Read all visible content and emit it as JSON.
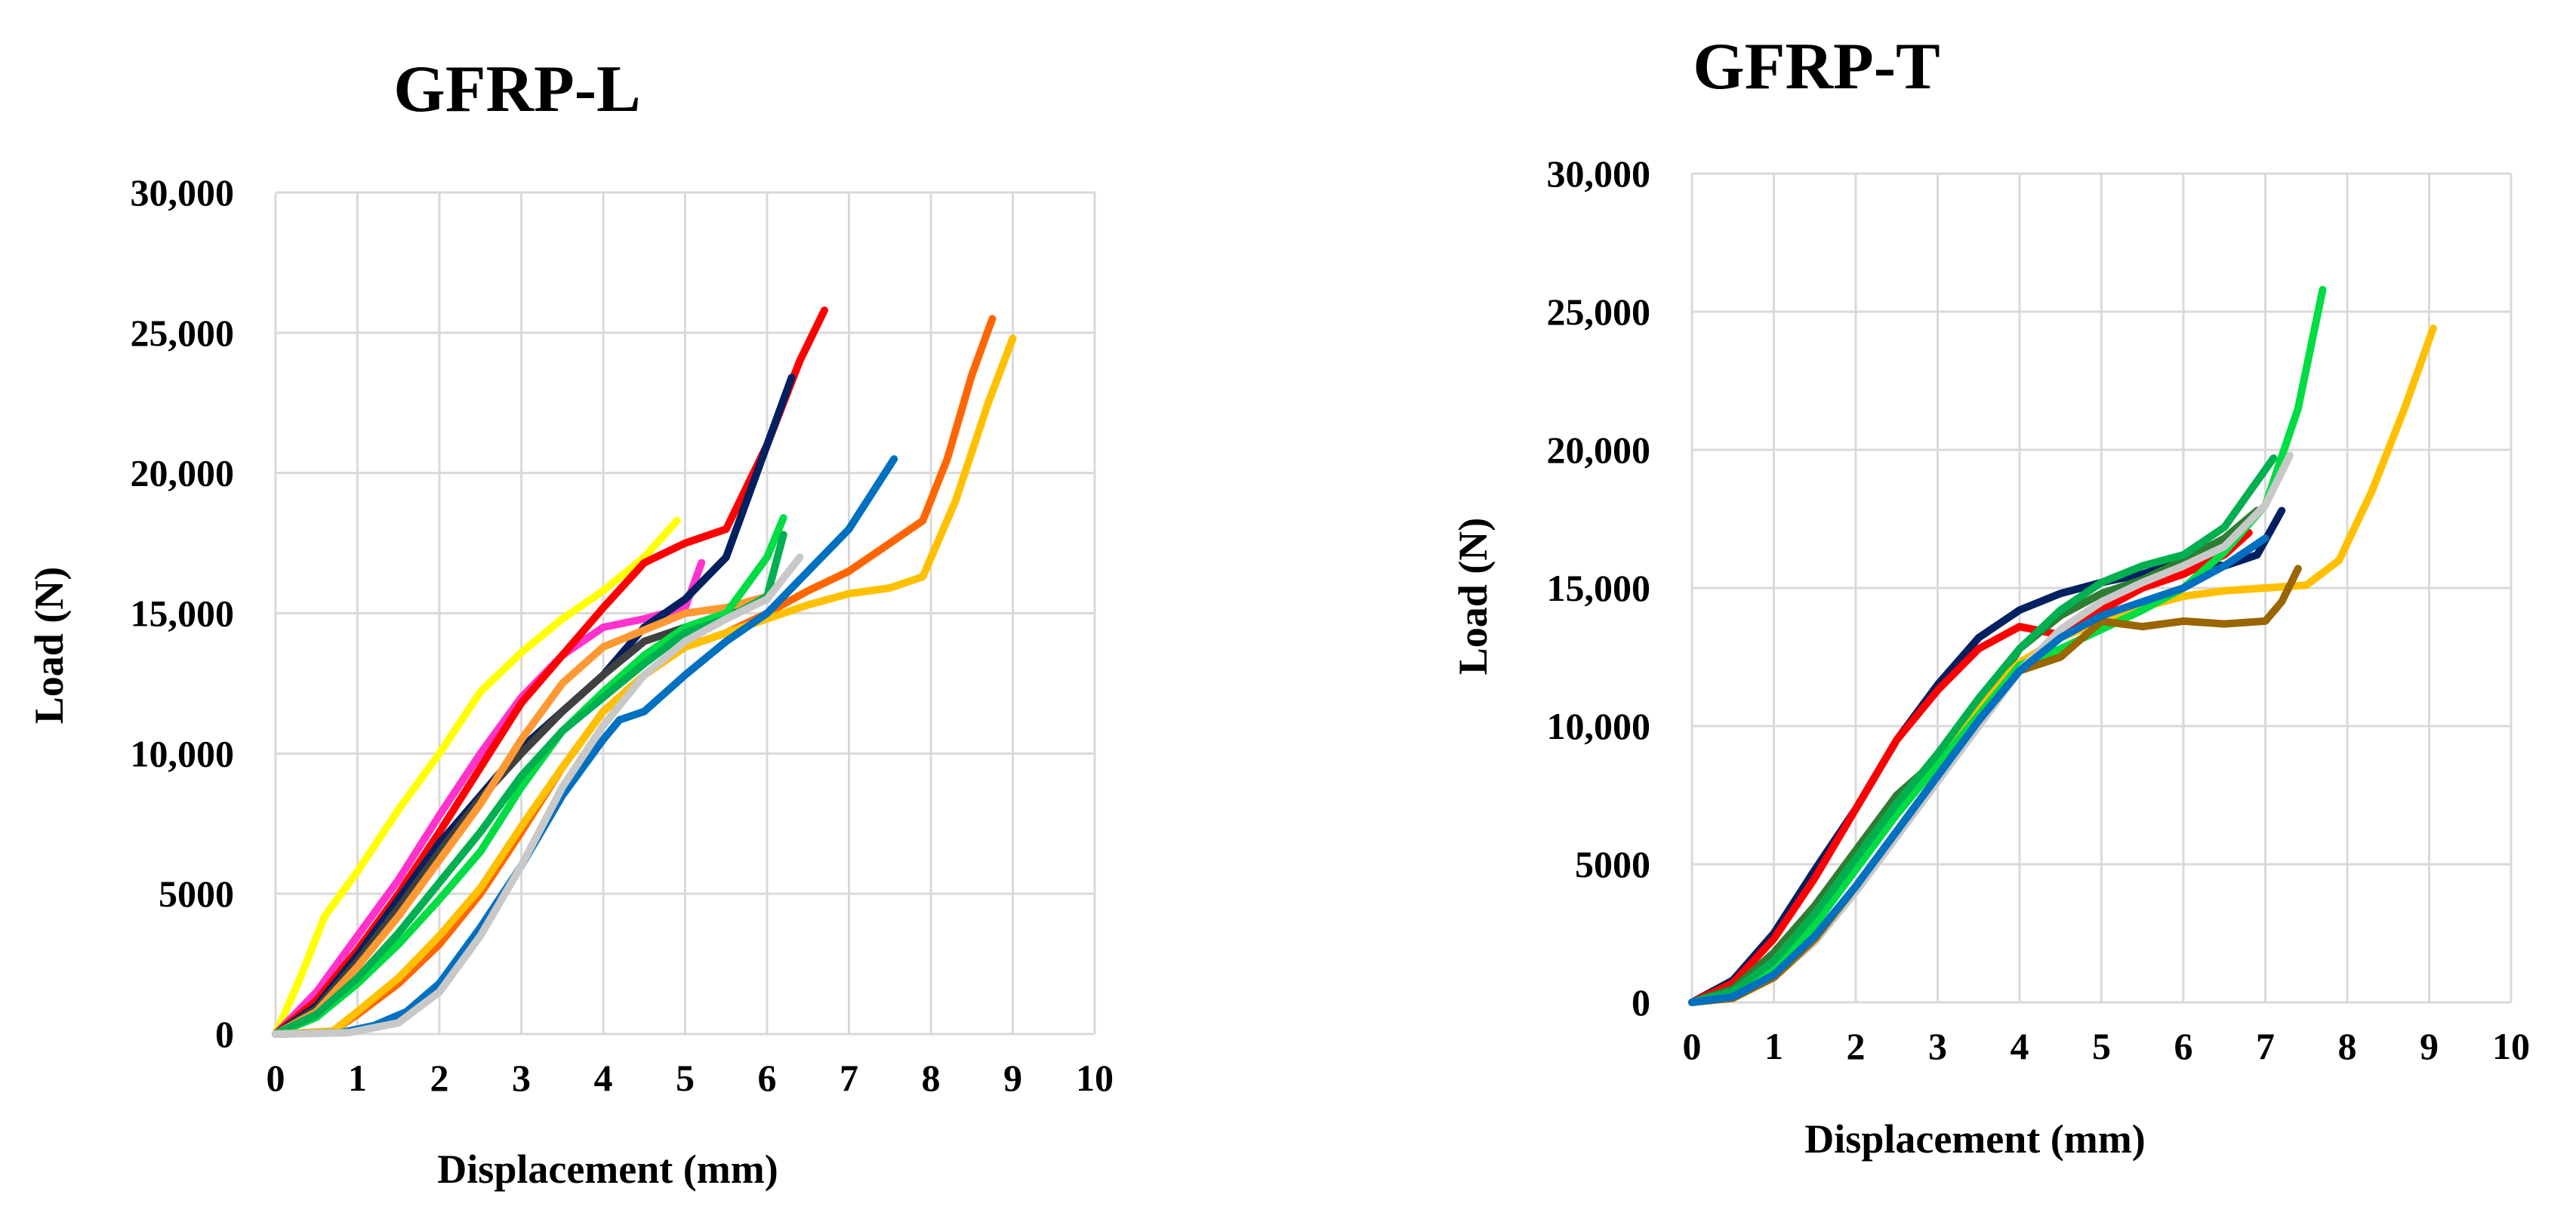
{
  "chart_data": [
    {
      "type": "line",
      "title": "GFRP-L",
      "xlabel": "Displacement (mm)",
      "ylabel": "Load (N)",
      "xlim": [
        0,
        10
      ],
      "ylim": [
        0,
        30000
      ],
      "xticks": [
        0,
        1,
        2,
        3,
        4,
        5,
        6,
        7,
        8,
        9,
        10
      ],
      "xtick_labels": [
        "0",
        "1",
        "2",
        "3",
        "4",
        "5",
        "6",
        "7",
        "8",
        "9",
        "10"
      ],
      "yticks": [
        0,
        5000,
        10000,
        15000,
        20000,
        25000,
        30000
      ],
      "ytick_labels": [
        "0",
        "5000",
        "10,000",
        "15,000",
        "20,000",
        "25,000",
        "30,000"
      ],
      "grid": true,
      "series": [
        {
          "name": "yellow",
          "color": "#ffff00",
          "x": [
            0,
            0.3,
            0.6,
            1.0,
            1.5,
            2.0,
            2.5,
            3.0,
            3.5,
            4.0,
            4.5,
            4.9
          ],
          "y": [
            0,
            2000,
            4200,
            5800,
            8000,
            10000,
            12200,
            13600,
            14800,
            15800,
            17000,
            18300
          ]
        },
        {
          "name": "magenta",
          "color": "#ff33cc",
          "x": [
            0,
            0.5,
            1.0,
            1.5,
            2.0,
            2.5,
            3.0,
            3.5,
            4.0,
            4.5,
            5.0,
            5.2
          ],
          "y": [
            0,
            1500,
            3500,
            5500,
            7800,
            10000,
            12000,
            13500,
            14500,
            14800,
            15200,
            16800
          ]
        },
        {
          "name": "red",
          "color": "#ff0000",
          "x": [
            0,
            0.5,
            1.0,
            1.5,
            2.0,
            2.5,
            3.0,
            3.5,
            4.0,
            4.5,
            5.0,
            5.5,
            6.0,
            6.4,
            6.7
          ],
          "y": [
            0,
            1200,
            3000,
            5000,
            7200,
            9500,
            11800,
            13500,
            15200,
            16800,
            17500,
            18000,
            21000,
            24000,
            25800
          ]
        },
        {
          "name": "navy",
          "color": "#002060",
          "x": [
            0,
            0.5,
            1.0,
            1.5,
            2.0,
            2.5,
            3.0,
            3.5,
            4.0,
            4.5,
            5.0,
            5.5,
            6.0,
            6.3
          ],
          "y": [
            0,
            1000,
            2800,
            4800,
            6800,
            8500,
            10200,
            11500,
            12800,
            14500,
            15500,
            17000,
            21000,
            23400
          ]
        },
        {
          "name": "dark-gray",
          "color": "#404040",
          "x": [
            0,
            0.5,
            1.0,
            1.5,
            2.0,
            2.5,
            3.0,
            3.5,
            4.0,
            4.5,
            5.0,
            5.5,
            6.0
          ],
          "y": [
            0,
            900,
            2600,
            4500,
            6500,
            8400,
            10000,
            11500,
            12800,
            14000,
            14500,
            15000,
            15500
          ]
        },
        {
          "name": "light-orange",
          "color": "#ff9933",
          "x": [
            0,
            0.5,
            1.0,
            1.5,
            2.0,
            2.5,
            3.0,
            3.5,
            4.0,
            4.5,
            5.0,
            5.5,
            6.0
          ],
          "y": [
            0,
            800,
            2400,
            4200,
            6200,
            8200,
            10500,
            12500,
            13800,
            14400,
            15000,
            15200,
            15600
          ]
        },
        {
          "name": "green",
          "color": "#00dd44",
          "x": [
            0,
            0.5,
            1.0,
            1.5,
            2.0,
            2.5,
            3.0,
            3.5,
            4.0,
            4.5,
            5.0,
            5.5,
            6.0,
            6.2
          ],
          "y": [
            0,
            600,
            1800,
            3200,
            4800,
            6500,
            8800,
            10800,
            12200,
            13500,
            14500,
            15000,
            17000,
            18400
          ]
        },
        {
          "name": "teal",
          "color": "#00b050",
          "x": [
            0,
            0.5,
            1.0,
            1.5,
            2.0,
            2.5,
            3.0,
            3.5,
            4.0,
            4.5,
            5.0,
            5.5,
            6.0,
            6.2
          ],
          "y": [
            0,
            700,
            2000,
            3600,
            5400,
            7200,
            9200,
            10800,
            12000,
            13200,
            14300,
            14800,
            15600,
            17800
          ]
        },
        {
          "name": "orange",
          "color": "#ff6600",
          "x": [
            0,
            0.7,
            1.0,
            1.5,
            2.0,
            2.5,
            3.0,
            3.5,
            4.0,
            4.5,
            5.0,
            5.5,
            6.0,
            6.5,
            7.0,
            7.5,
            7.9,
            8.2,
            8.5,
            8.75
          ],
          "y": [
            0,
            100,
            700,
            1800,
            3200,
            5000,
            7200,
            9500,
            11500,
            12800,
            13800,
            14300,
            15000,
            15800,
            16500,
            17500,
            18300,
            20500,
            23500,
            25500
          ]
        },
        {
          "name": "gold",
          "color": "#ffc000",
          "x": [
            0,
            0.7,
            1.0,
            1.5,
            2.0,
            2.5,
            3.0,
            3.5,
            4.0,
            4.5,
            5.0,
            5.5,
            6.0,
            6.5,
            7.0,
            7.5,
            7.9,
            8.3,
            8.7,
            9.0
          ],
          "y": [
            0,
            100,
            800,
            2000,
            3500,
            5200,
            7400,
            9500,
            11500,
            12800,
            13800,
            14300,
            14800,
            15300,
            15700,
            15900,
            16300,
            19000,
            22500,
            24800
          ]
        },
        {
          "name": "blue",
          "color": "#0070c0",
          "x": [
            0,
            0.8,
            1.2,
            1.6,
            2.0,
            2.5,
            3.0,
            3.5,
            4.0,
            4.2,
            4.5,
            5.0,
            5.5,
            6.0,
            6.5,
            7.0,
            7.55
          ],
          "y": [
            0,
            50,
            300,
            800,
            1800,
            3800,
            6000,
            8500,
            10500,
            11200,
            11500,
            12800,
            14000,
            15000,
            16500,
            18000,
            20500
          ]
        },
        {
          "name": "light-gray",
          "color": "#c8c8c8",
          "x": [
            0,
            0.9,
            1.5,
            2.0,
            2.5,
            3.0,
            3.5,
            4.0,
            4.5,
            5.0,
            5.5,
            6.0,
            6.4
          ],
          "y": [
            0,
            50,
            400,
            1500,
            3500,
            6000,
            8800,
            11000,
            12800,
            14000,
            14800,
            15500,
            17000
          ]
        }
      ]
    },
    {
      "type": "line",
      "title": "GFRP-T",
      "xlabel": "Displacement (mm)",
      "ylabel": "Load (N)",
      "xlim": [
        0,
        10
      ],
      "ylim": [
        0,
        30000
      ],
      "xticks": [
        0,
        1,
        2,
        3,
        4,
        5,
        6,
        7,
        8,
        9,
        10
      ],
      "xtick_labels": [
        "0",
        "1",
        "2",
        "3",
        "4",
        "5",
        "6",
        "7",
        "8",
        "9",
        "10"
      ],
      "yticks": [
        0,
        5000,
        10000,
        15000,
        20000,
        25000,
        30000
      ],
      "ytick_labels": [
        "0",
        "5000",
        "10,000",
        "15,000",
        "20,000",
        "25,000",
        "30,000"
      ],
      "grid": true,
      "series": [
        {
          "name": "navy",
          "color": "#002060",
          "x": [
            0,
            0.5,
            1.0,
            1.5,
            2.0,
            2.5,
            3.0,
            3.5,
            4.0,
            4.5,
            5.0,
            5.5,
            6.0,
            6.5,
            6.9,
            7.2
          ],
          "y": [
            0,
            800,
            2500,
            4800,
            7000,
            9500,
            11500,
            13200,
            14200,
            14800,
            15200,
            15500,
            16000,
            15800,
            16200,
            17800
          ]
        },
        {
          "name": "red",
          "color": "#ff0000",
          "x": [
            0,
            0.5,
            1.0,
            1.5,
            2.0,
            2.5,
            3.0,
            3.5,
            4.0,
            4.5,
            5.0,
            5.5,
            6.0,
            6.5,
            6.8
          ],
          "y": [
            0,
            700,
            2300,
            4500,
            7000,
            9500,
            11300,
            12800,
            13600,
            13300,
            14200,
            15000,
            15500,
            16200,
            17000
          ]
        },
        {
          "name": "dark-green",
          "color": "#2e7d32",
          "x": [
            0,
            0.5,
            1.0,
            1.5,
            2.0,
            2.5,
            3.0,
            3.5,
            4.0,
            4.5,
            5.0,
            5.5,
            6.0,
            6.5,
            6.9
          ],
          "y": [
            0,
            500,
            1800,
            3500,
            5500,
            7500,
            8800,
            10500,
            12800,
            14000,
            14800,
            15300,
            16000,
            16800,
            17800
          ]
        },
        {
          "name": "gold",
          "color": "#ffc000",
          "x": [
            0,
            0.5,
            1.0,
            1.5,
            2.0,
            2.5,
            3.0,
            3.5,
            4.0,
            4.5,
            5.0,
            5.5,
            6.0,
            6.5,
            7.0,
            7.5,
            7.9,
            8.3,
            8.7,
            9.05
          ],
          "y": [
            0,
            300,
            1500,
            3200,
            5200,
            7200,
            9000,
            10800,
            12300,
            13200,
            13800,
            14300,
            14700,
            14900,
            15000,
            15100,
            16000,
            18500,
            21500,
            24400
          ]
        },
        {
          "name": "green",
          "color": "#00dd44",
          "x": [
            0,
            0.5,
            1.0,
            1.5,
            2.0,
            2.5,
            3.0,
            3.5,
            4.0,
            4.5,
            5.0,
            5.5,
            6.0,
            6.5,
            7.0,
            7.4,
            7.7
          ],
          "y": [
            0,
            300,
            1200,
            2800,
            4800,
            6800,
            8600,
            10400,
            12200,
            12800,
            13500,
            14200,
            15000,
            16300,
            18000,
            21500,
            25800
          ]
        },
        {
          "name": "teal",
          "color": "#00b050",
          "x": [
            0,
            0.5,
            1.0,
            1.5,
            2.0,
            2.5,
            3.0,
            3.5,
            4.0,
            4.5,
            5.0,
            5.5,
            6.0,
            6.5,
            7.1
          ],
          "y": [
            0,
            400,
            1500,
            3200,
            5200,
            7200,
            9000,
            11000,
            12800,
            14200,
            15200,
            15800,
            16200,
            17200,
            19700
          ]
        },
        {
          "name": "light-gray",
          "color": "#c8c8c8",
          "x": [
            0,
            0.5,
            1.0,
            1.5,
            2.0,
            2.5,
            3.0,
            3.5,
            4.0,
            4.5,
            5.0,
            5.5,
            6.0,
            6.5,
            7.0,
            7.3
          ],
          "y": [
            0,
            200,
            900,
            2200,
            4000,
            6000,
            8000,
            10000,
            12000,
            13500,
            14500,
            15200,
            15800,
            16500,
            18000,
            19800
          ]
        },
        {
          "name": "brown",
          "color": "#996600",
          "x": [
            0,
            0.5,
            1.0,
            1.5,
            2.0,
            2.5,
            3.0,
            3.5,
            4.0,
            4.5,
            5.0,
            5.5,
            6.0,
            6.5,
            7.0,
            7.2,
            7.4
          ],
          "y": [
            0,
            150,
            900,
            2300,
            4200,
            6200,
            8200,
            10200,
            12000,
            12500,
            13800,
            13600,
            13800,
            13700,
            13800,
            14500,
            15700
          ]
        },
        {
          "name": "blue",
          "color": "#0070c0",
          "x": [
            0,
            0.5,
            1.0,
            1.5,
            2.0,
            2.5,
            3.0,
            3.5,
            4.0,
            4.5,
            5.0,
            5.5,
            6.0,
            6.5,
            7.0
          ],
          "y": [
            0,
            200,
            1000,
            2400,
            4200,
            6200,
            8200,
            10200,
            12000,
            13200,
            14000,
            14500,
            15000,
            15800,
            16800
          ]
        }
      ]
    }
  ]
}
